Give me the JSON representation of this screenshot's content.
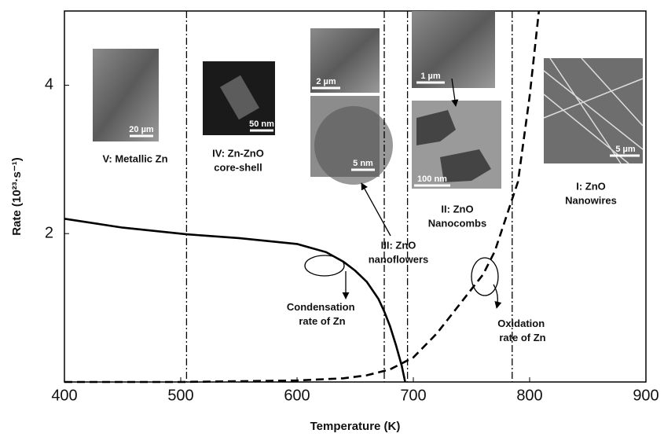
{
  "chart_data": {
    "type": "line",
    "x_label": "Temperature (K)",
    "y_label": "Rate (10²³·s⁻¹)",
    "xlim": [
      400,
      900
    ],
    "xticks": [
      400,
      500,
      600,
      700,
      800,
      900
    ],
    "ylim": [
      0,
      5
    ],
    "yticks": [
      2,
      4
    ],
    "vlines": [
      505,
      675,
      695,
      785
    ],
    "series": [
      {
        "name": "Condensation rate of Zn",
        "color": "#000000",
        "dash": false,
        "x": [
          400,
          450,
          505,
          550,
          600,
          625,
          640,
          650,
          660,
          670,
          675,
          680,
          685,
          690,
          693
        ],
        "values": [
          2.2,
          2.08,
          1.99,
          1.94,
          1.86,
          1.75,
          1.62,
          1.5,
          1.35,
          1.12,
          0.95,
          0.75,
          0.5,
          0.22,
          0
        ]
      },
      {
        "name": "Oxidation rate of Zn",
        "color": "#000000",
        "dash": true,
        "x": [
          400,
          500,
          600,
          640,
          660,
          680,
          700,
          720,
          740,
          760,
          770,
          780,
          790,
          800,
          808
        ],
        "values": [
          0,
          0,
          0.02,
          0.05,
          0.09,
          0.17,
          0.33,
          0.65,
          1.05,
          1.45,
          1.76,
          2.23,
          2.7,
          3.85,
          5.0
        ]
      }
    ],
    "annotations": [
      [
        "V: Metallic Zn"
      ],
      [
        "IV: Zn-ZnO",
        "core-shell"
      ],
      [
        "III: ZnO",
        "nanoflowers"
      ],
      [
        "II: ZnO",
        "Nanocombs"
      ],
      [
        "I: ZnO",
        "Nanowires"
      ]
    ],
    "inset_scale_bars": [
      "20 µm",
      "50 nm",
      "2 µm",
      "5 nm",
      "1 µm",
      "100 nm",
      "5 µm"
    ]
  }
}
